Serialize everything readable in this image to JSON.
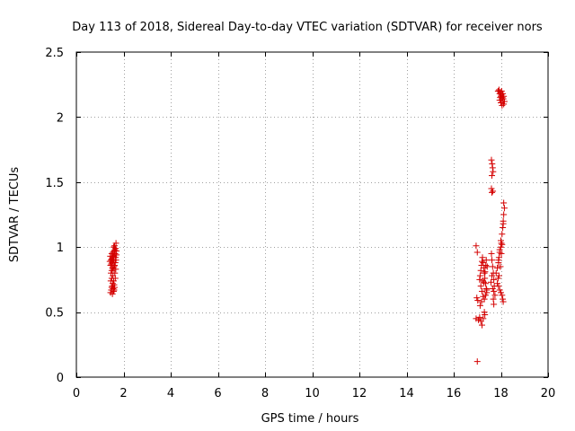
{
  "chart_data": {
    "type": "scatter",
    "title": "Day 113 of 2018, Sidereal Day-to-day VTEC variation (SDTVAR) for receiver nors",
    "xlabel": "GPS time / hours",
    "ylabel": "SDTVAR / TECUs",
    "xlim": [
      0,
      20
    ],
    "ylim": [
      0,
      2.5
    ],
    "xticks": [
      0,
      2,
      4,
      6,
      8,
      10,
      12,
      14,
      16,
      18,
      20
    ],
    "yticks": [
      0,
      0.5,
      1,
      1.5,
      2,
      2.5
    ],
    "ytick_labels": [
      "0",
      "0.5",
      "1",
      "1.5",
      "2",
      "2.5"
    ],
    "grid": true,
    "marker": "+",
    "marker_color": "#d40000",
    "series": [
      {
        "name": "nors",
        "points": [
          [
            1.45,
            0.65
          ],
          [
            1.48,
            0.67
          ],
          [
            1.5,
            0.69
          ],
          [
            1.52,
            0.7
          ],
          [
            1.54,
            0.72
          ],
          [
            1.56,
            0.68
          ],
          [
            1.58,
            0.66
          ],
          [
            1.6,
            0.71
          ],
          [
            1.62,
            0.69
          ],
          [
            1.46,
            0.74
          ],
          [
            1.5,
            0.76
          ],
          [
            1.55,
            0.78
          ],
          [
            1.47,
            0.8
          ],
          [
            1.5,
            0.82
          ],
          [
            1.53,
            0.84
          ],
          [
            1.56,
            0.83
          ],
          [
            1.6,
            0.85
          ],
          [
            1.45,
            0.86
          ],
          [
            1.48,
            0.87
          ],
          [
            1.52,
            0.88
          ],
          [
            1.55,
            0.89
          ],
          [
            1.58,
            0.9
          ],
          [
            1.62,
            0.86
          ],
          [
            1.65,
            0.88
          ],
          [
            1.47,
            0.9
          ],
          [
            1.5,
            0.91
          ],
          [
            1.53,
            0.92
          ],
          [
            1.56,
            0.93
          ],
          [
            1.6,
            0.94
          ],
          [
            1.64,
            0.95
          ],
          [
            1.5,
            0.95
          ],
          [
            1.55,
            0.96
          ],
          [
            1.6,
            0.97
          ],
          [
            1.63,
            0.98
          ],
          [
            1.66,
            0.99
          ],
          [
            1.58,
            1.0
          ],
          [
            1.62,
            1.01
          ],
          [
            1.68,
            1.03
          ],
          [
            1.66,
            0.92
          ],
          [
            1.68,
            0.9
          ],
          [
            1.7,
            0.94
          ],
          [
            1.7,
            0.97
          ],
          [
            1.63,
            0.8
          ],
          [
            1.67,
            0.83
          ],
          [
            1.65,
            0.76
          ],
          [
            1.58,
            0.74
          ],
          [
            1.53,
            0.64
          ],
          [
            1.6,
            0.67
          ],
          [
            1.44,
            0.93
          ],
          [
            1.42,
            0.89
          ],
          [
            17.0,
            0.12
          ],
          [
            16.95,
            1.01
          ],
          [
            17.0,
            0.96
          ],
          [
            16.98,
            0.61
          ],
          [
            17.02,
            0.59
          ],
          [
            16.95,
            0.45
          ],
          [
            17.05,
            0.44
          ],
          [
            17.1,
            0.46
          ],
          [
            17.15,
            0.43
          ],
          [
            17.2,
            0.4
          ],
          [
            17.25,
            0.45
          ],
          [
            17.3,
            0.5
          ],
          [
            17.32,
            0.48
          ],
          [
            17.1,
            0.75
          ],
          [
            17.12,
            0.78
          ],
          [
            17.15,
            0.82
          ],
          [
            17.18,
            0.86
          ],
          [
            17.2,
            0.89
          ],
          [
            17.22,
            0.92
          ],
          [
            17.25,
            0.88
          ],
          [
            17.28,
            0.84
          ],
          [
            17.3,
            0.8
          ],
          [
            17.32,
            0.76
          ],
          [
            17.35,
            0.72
          ],
          [
            17.38,
            0.68
          ],
          [
            17.4,
            0.65
          ],
          [
            17.15,
            0.7
          ],
          [
            17.2,
            0.66
          ],
          [
            17.25,
            0.62
          ],
          [
            17.3,
            0.6
          ],
          [
            17.35,
            0.63
          ],
          [
            17.4,
            0.67
          ],
          [
            17.12,
            0.55
          ],
          [
            17.18,
            0.58
          ],
          [
            17.28,
            0.73
          ],
          [
            17.33,
            0.81
          ],
          [
            17.36,
            0.86
          ],
          [
            17.38,
            0.9
          ],
          [
            17.42,
            0.85
          ],
          [
            17.22,
            0.74
          ],
          [
            17.6,
            1.67
          ],
          [
            17.63,
            1.64
          ],
          [
            17.65,
            1.61
          ],
          [
            17.67,
            1.58
          ],
          [
            17.62,
            1.55
          ],
          [
            17.6,
            1.45
          ],
          [
            17.62,
            1.42
          ],
          [
            17.66,
            1.43
          ],
          [
            17.6,
            0.95
          ],
          [
            17.62,
            0.9
          ],
          [
            17.65,
            0.85
          ],
          [
            17.68,
            0.8
          ],
          [
            17.7,
            0.75
          ],
          [
            17.72,
            0.7
          ],
          [
            17.65,
            0.68
          ],
          [
            17.7,
            0.66
          ],
          [
            17.75,
            0.63
          ],
          [
            17.68,
            0.6
          ],
          [
            17.7,
            0.56
          ],
          [
            17.62,
            0.78
          ],
          [
            17.58,
            0.73
          ],
          [
            17.8,
            0.8
          ],
          [
            17.85,
            0.84
          ],
          [
            17.9,
            0.88
          ],
          [
            17.92,
            0.92
          ],
          [
            17.95,
            0.96
          ],
          [
            18.0,
            1.0
          ],
          [
            18.02,
            1.03
          ],
          [
            17.88,
            0.76
          ],
          [
            17.9,
            0.7
          ],
          [
            17.95,
            0.67
          ],
          [
            18.0,
            0.65
          ],
          [
            18.05,
            0.63
          ],
          [
            18.08,
            0.6
          ],
          [
            18.1,
            0.58
          ],
          [
            17.85,
            0.72
          ],
          [
            17.9,
            0.9
          ],
          [
            17.95,
            0.98
          ],
          [
            18.0,
            1.05
          ],
          [
            18.05,
            1.1
          ],
          [
            18.08,
            1.15
          ],
          [
            18.1,
            1.2
          ],
          [
            18.12,
            1.25
          ],
          [
            18.15,
            1.3
          ],
          [
            18.12,
            1.34
          ],
          [
            18.05,
            1.02
          ],
          [
            18.02,
            0.95
          ],
          [
            17.98,
            0.85
          ],
          [
            17.92,
            0.78
          ],
          [
            18.1,
            1.18
          ],
          [
            17.9,
            2.2
          ],
          [
            17.95,
            2.18
          ],
          [
            18.0,
            2.16
          ],
          [
            18.05,
            2.14
          ],
          [
            18.1,
            2.12
          ],
          [
            18.12,
            2.1
          ],
          [
            17.92,
            2.21
          ],
          [
            17.98,
            2.19
          ],
          [
            18.02,
            2.17
          ],
          [
            18.06,
            2.15
          ],
          [
            18.08,
            2.18
          ],
          [
            18.1,
            2.14
          ],
          [
            17.95,
            2.13
          ],
          [
            18.0,
            2.11
          ],
          [
            18.05,
            2.09
          ],
          [
            18.12,
            2.16
          ],
          [
            17.88,
            2.2
          ],
          [
            18.03,
            2.2
          ],
          [
            18.15,
            2.12
          ],
          [
            17.97,
            2.15
          ]
        ]
      }
    ]
  }
}
